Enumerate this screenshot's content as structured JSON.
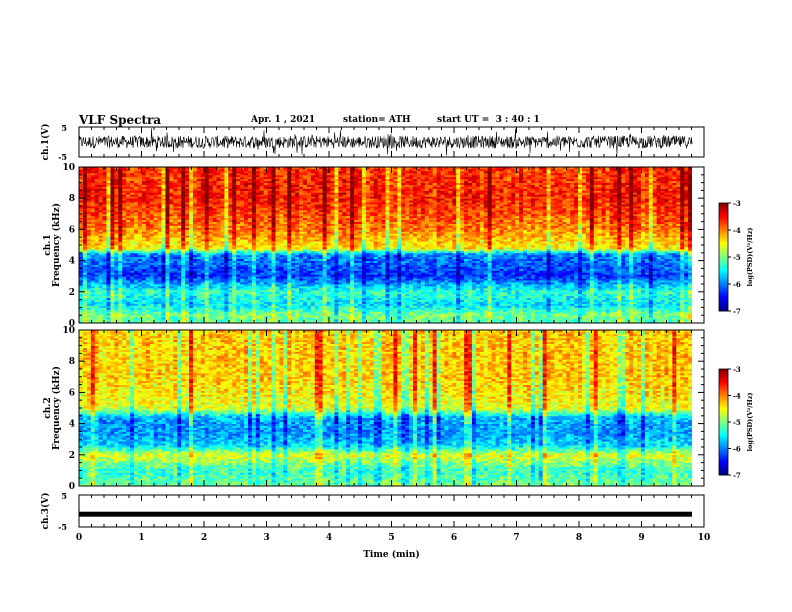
{
  "header": {
    "title": "VLF Spectra",
    "date": "Apr. 1 , 2021",
    "station": "station= ATH",
    "start_ut": "start UT =  3 : 40 : 1"
  },
  "chart_data": [
    {
      "type": "line",
      "ylabel": "ch.1(V)",
      "ylim": [
        -5,
        5
      ],
      "ytick_labels": [
        "5",
        "-5"
      ],
      "xlim": [
        0,
        10
      ],
      "description_values": "noisy waveform, amplitude mostly within ±4 V",
      "color": "#000000"
    },
    {
      "type": "heatmap",
      "ylabel": "ch.1",
      "ylabel2": "Frequency (kHz)",
      "ylim": [
        0,
        10
      ],
      "yticks": [
        0,
        2,
        4,
        6,
        8,
        10
      ],
      "xlim": [
        0,
        10
      ],
      "colorbar_label": "log(PSD)(V²/Hz)",
      "colorbar_ticks": [
        "-3",
        "-4",
        "-5",
        "-6",
        "-7"
      ],
      "colorbar_range": [
        -7,
        -3
      ],
      "profile_khz": [
        [
          0,
          -5.2
        ],
        [
          0.5,
          -5.0
        ],
        [
          1.2,
          -5.6
        ],
        [
          2.0,
          -5.3
        ],
        [
          3.0,
          -6.3
        ],
        [
          4.4,
          -6.0
        ],
        [
          4.8,
          -4.5
        ],
        [
          6.0,
          -4.0
        ],
        [
          8.0,
          -3.6
        ],
        [
          10,
          -3.7
        ]
      ]
    },
    {
      "type": "heatmap",
      "ylabel": "ch.2",
      "ylabel2": "Frequency (kHz)",
      "ylim": [
        0,
        10
      ],
      "yticks": [
        0,
        2,
        4,
        6,
        8,
        10
      ],
      "xlim": [
        0,
        10
      ],
      "colorbar_label": "log(PSD)(V²/Hz)",
      "colorbar_ticks": [
        "-3",
        "-4",
        "-5",
        "-6",
        "-7"
      ],
      "colorbar_range": [
        -7,
        -3
      ],
      "profile_khz": [
        [
          0,
          -5.0
        ],
        [
          1.0,
          -5.3
        ],
        [
          2.0,
          -4.6
        ],
        [
          2.6,
          -5.6
        ],
        [
          3.4,
          -5.9
        ],
        [
          4.4,
          -5.8
        ],
        [
          5.0,
          -4.6
        ],
        [
          7.0,
          -4.3
        ],
        [
          10,
          -4.3
        ]
      ]
    },
    {
      "type": "line",
      "ylabel": "ch.3(V)",
      "ylim": [
        -5,
        5
      ],
      "ytick_labels": [
        "5",
        "-5"
      ],
      "xlim": [
        0,
        10
      ],
      "description_values": "flat signal near -1 V",
      "level": -1,
      "color": "#000000"
    }
  ],
  "xaxis": {
    "label": "Time (min)",
    "ticks": [
      "0",
      "1",
      "2",
      "3",
      "4",
      "5",
      "6",
      "7",
      "8",
      "9",
      "10"
    ]
  }
}
